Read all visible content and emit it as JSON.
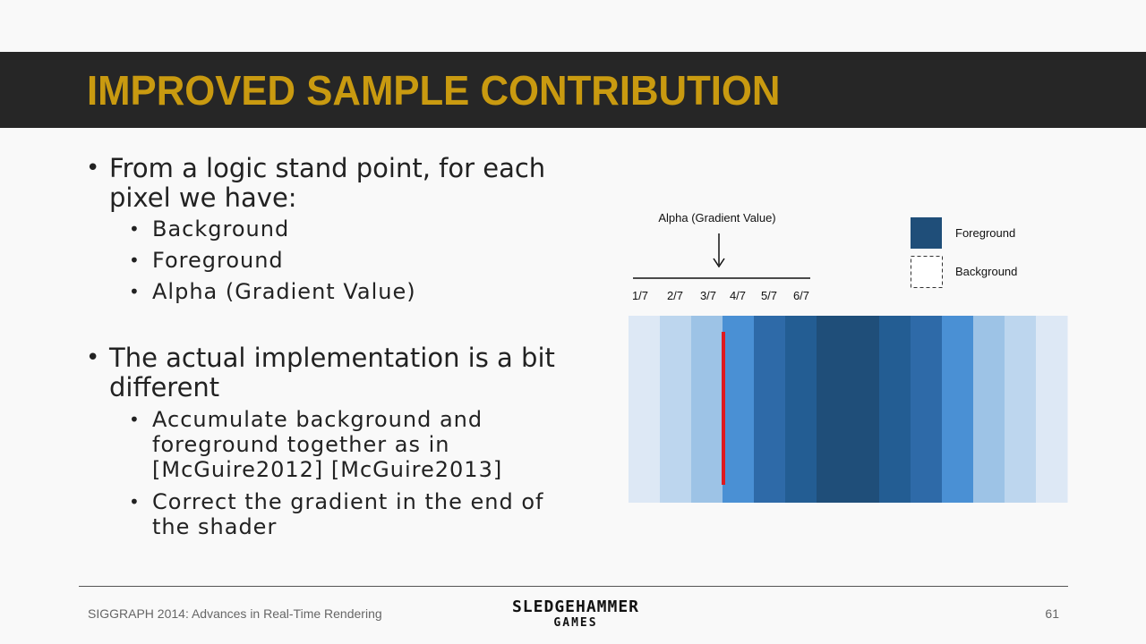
{
  "slide": {
    "title": "IMPROVED SAMPLE CONTRIBUTION",
    "bullets": [
      {
        "text": "From a logic stand point, for each pixel we have:",
        "sub": [
          "Background",
          "Foreground",
          "Alpha (Gradient Value)"
        ]
      },
      {
        "text": "The actual implementation is a bit different",
        "sub": [
          "Accumulate background and foreground together as in [McGuire2012] [McGuire2013]",
          "Correct the gradient in the end of the shader"
        ]
      }
    ]
  },
  "diagram": {
    "alpha_label": "Alpha (Gradient Value)",
    "ticks": [
      "1/7",
      "2/7",
      "3/7",
      "4/7",
      "5/7",
      "6/7"
    ],
    "legend": [
      {
        "label": "Foreground",
        "color": "#1f4e79"
      },
      {
        "label": "Background",
        "color": "#ffffff"
      }
    ],
    "band_colors": [
      "#dde8f5",
      "#bdd6ee",
      "#9dc3e6",
      "#4a90d4",
      "#2e6aa8",
      "#235d93",
      "#1f4e79",
      "#1f4e79",
      "#235d93",
      "#2e6aa8",
      "#4a90d4",
      "#9dc3e6",
      "#bdd6ee",
      "#dde8f5"
    ],
    "marker_color": "#e0191f"
  },
  "footer": {
    "left": "SIGGRAPH 2014: Advances in Real-Time Rendering",
    "logo_line1": "SLEDGEHAMMER",
    "logo_line2": "GAMES",
    "page": "61"
  }
}
